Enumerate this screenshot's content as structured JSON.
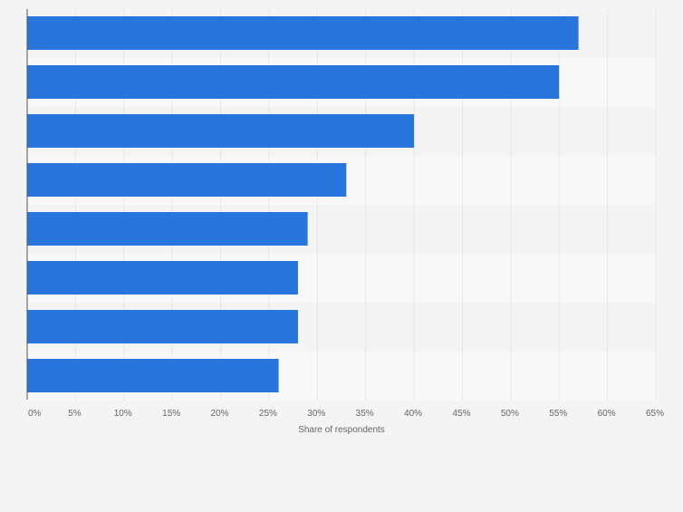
{
  "chart_data": {
    "type": "bar",
    "orientation": "horizontal",
    "categories": [
      "",
      "",
      "",
      "",
      "",
      "",
      "",
      ""
    ],
    "values": [
      57,
      55,
      40,
      33,
      29,
      28,
      28,
      26
    ],
    "xlabel": "Share of respondents",
    "ylabel": "",
    "xlim": [
      0,
      65
    ],
    "x_ticks": [
      0,
      5,
      10,
      15,
      20,
      25,
      30,
      35,
      40,
      45,
      50,
      55,
      60,
      65
    ],
    "x_tick_labels": [
      "0%",
      "5%",
      "10%",
      "15%",
      "20%",
      "25%",
      "30%",
      "35%",
      "40%",
      "45%",
      "50%",
      "55%",
      "60%",
      "65%"
    ],
    "grid": true,
    "bar_color": "#2876dd",
    "grid_color": "#d9d9d9"
  }
}
